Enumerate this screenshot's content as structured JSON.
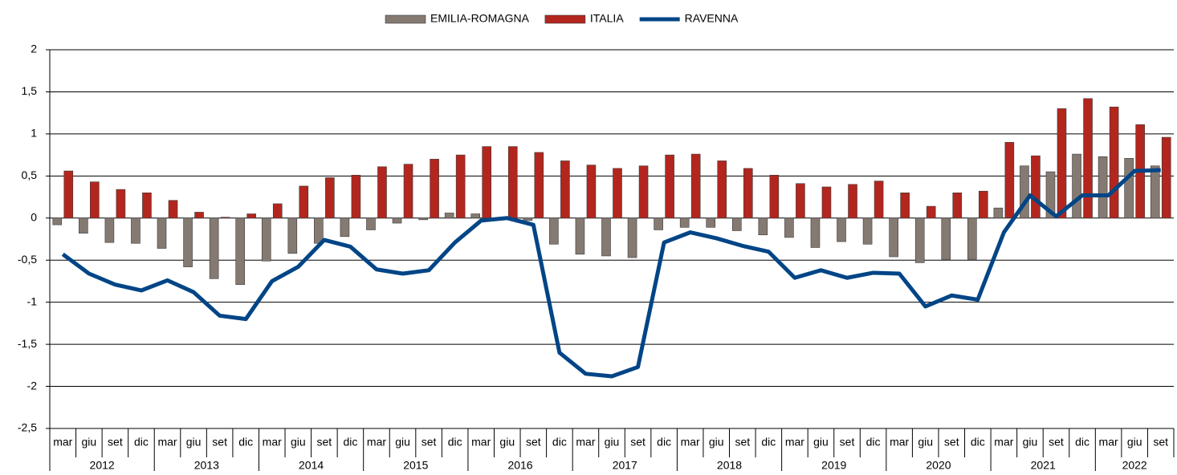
{
  "chart_data": {
    "type": "bar-line",
    "categories": [
      "mar",
      "giu",
      "set",
      "dic",
      "mar",
      "giu",
      "set",
      "dic",
      "mar",
      "giu",
      "set",
      "dic",
      "mar",
      "giu",
      "set",
      "dic",
      "mar",
      "giu",
      "set",
      "dic",
      "mar",
      "giu",
      "set",
      "dic",
      "mar",
      "giu",
      "set",
      "dic",
      "mar",
      "giu",
      "set",
      "dic",
      "mar",
      "giu",
      "set",
      "dic",
      "mar",
      "giu",
      "set",
      "dic",
      "mar",
      "giu",
      "set"
    ],
    "years": [
      "2012",
      "2013",
      "2014",
      "2015",
      "2016",
      "2017",
      "2018",
      "2019",
      "2020",
      "2021",
      "2022"
    ],
    "series": [
      {
        "name": "EMILIA-ROMAGNA",
        "kind": "bar",
        "color": "#857a72",
        "values": [
          -0.08,
          -0.18,
          -0.29,
          -0.3,
          -0.36,
          -0.58,
          -0.72,
          -0.79,
          -0.51,
          -0.42,
          -0.3,
          -0.22,
          -0.14,
          -0.06,
          -0.02,
          0.06,
          0.05,
          0.0,
          -0.03,
          -0.31,
          -0.43,
          -0.45,
          -0.47,
          -0.14,
          -0.11,
          -0.11,
          -0.15,
          -0.2,
          -0.23,
          -0.35,
          -0.28,
          -0.31,
          -0.46,
          -0.53,
          -0.49,
          -0.49,
          0.12,
          0.62,
          0.55,
          0.76,
          0.73,
          0.71,
          0.62
        ]
      },
      {
        "name": "ITALIA",
        "kind": "bar",
        "color": "#b3261e",
        "values": [
          0.56,
          0.43,
          0.34,
          0.3,
          0.21,
          0.07,
          0.01,
          0.05,
          0.17,
          0.38,
          0.48,
          0.51,
          0.61,
          0.64,
          0.7,
          0.75,
          0.85,
          0.85,
          0.78,
          0.68,
          0.63,
          0.59,
          0.62,
          0.75,
          0.76,
          0.68,
          0.59,
          0.51,
          0.41,
          0.37,
          0.4,
          0.44,
          0.3,
          0.14,
          0.3,
          0.32,
          0.9,
          0.74,
          1.3,
          1.42,
          1.32,
          1.11,
          0.96
        ]
      },
      {
        "name": "RAVENNA",
        "kind": "line",
        "color": "#004586",
        "values": [
          -0.43,
          -0.66,
          -0.79,
          -0.86,
          -0.74,
          -0.88,
          -1.16,
          -1.2,
          -0.75,
          -0.58,
          -0.26,
          -0.34,
          -0.61,
          -0.66,
          -0.62,
          -0.29,
          -0.03,
          0.0,
          -0.08,
          -1.6,
          -1.85,
          -1.88,
          -1.77,
          -0.29,
          -0.17,
          -0.24,
          -0.33,
          -0.4,
          -0.71,
          -0.62,
          -0.71,
          -0.65,
          -0.66,
          -1.05,
          -0.92,
          -0.97,
          -0.17,
          0.27,
          0.02,
          0.27,
          0.27,
          0.56,
          0.57
        ]
      }
    ],
    "ylim": [
      -2.5,
      2
    ],
    "yticks": [
      {
        "value": -2.5,
        "label": "-2,5"
      },
      -2,
      {
        "value": -1.5,
        "label": "-1,5"
      },
      -1,
      {
        "value": -0.5,
        "label": "-0,5"
      },
      0,
      {
        "value": 0.5,
        "label": "0,5"
      },
      1,
      {
        "value": 1.5,
        "label": "1,5"
      },
      2
    ],
    "grid": true,
    "legend": "top"
  }
}
